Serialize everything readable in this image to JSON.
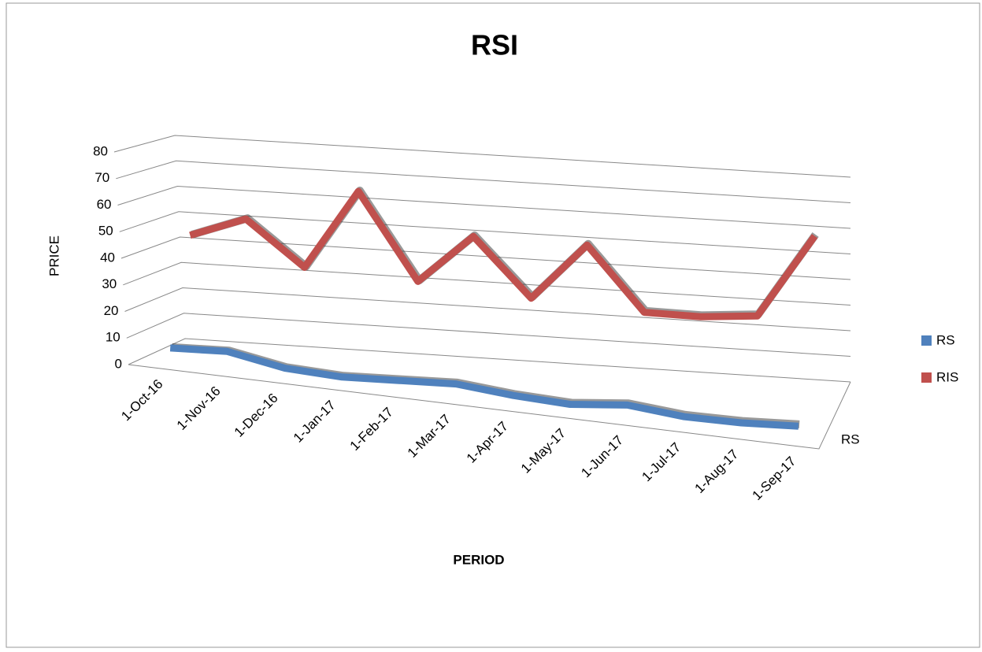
{
  "chart_data": {
    "type": "line3d",
    "title": "RSI",
    "x_label": "PERIOD",
    "y_label": "PRICE",
    "categories": [
      "1-Oct-16",
      "1-Nov-16",
      "1-Dec-16",
      "1-Jan-17",
      "1-Feb-17",
      "1-Mar-17",
      "1-Apr-17",
      "1-May-17",
      "1-Jun-17",
      "1-Jul-17",
      "1-Aug-17",
      "1-Sep-17"
    ],
    "series": [
      {
        "name": "RS",
        "color": "#4f81bd",
        "values": [
          5,
          6,
          2,
          1,
          2,
          3,
          1,
          0,
          2,
          0,
          0,
          1
        ]
      },
      {
        "name": "RIS",
        "color": "#c0504d",
        "values": [
          44,
          52,
          35,
          66,
          33,
          52,
          30,
          52,
          28,
          28,
          30,
          62
        ]
      }
    ],
    "depth_categories": [
      "RS"
    ],
    "ylim": [
      0,
      80
    ],
    "yticks": [
      0,
      10,
      20,
      30,
      40,
      50,
      60,
      70,
      80
    ],
    "grid": true,
    "legend": "right"
  }
}
